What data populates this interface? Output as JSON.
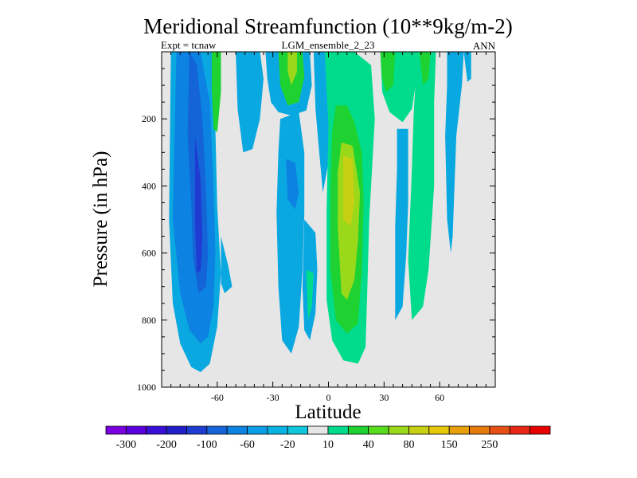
{
  "chart_data": {
    "type": "heatmap",
    "title": "Meridional Streamfunction (10**9kg/m-2)",
    "left_string": "Expt = tcnaw",
    "center_string": "LGM_ensemble_2_23",
    "right_string": "ANN",
    "xlabel": "Latitude",
    "ylabel": "Pressure (in hPa)",
    "xlim": [
      -90,
      90
    ],
    "ylim": [
      1000,
      0
    ],
    "x_tick_labels": [
      "-60",
      "-30",
      "0",
      "30",
      "60"
    ],
    "x_ticks": [
      -60,
      -30,
      0,
      30,
      60
    ],
    "y_tick_labels": [
      "200",
      "400",
      "600",
      "800",
      "1000"
    ],
    "y_ticks": [
      200,
      400,
      600,
      800,
      1000
    ],
    "background_color": "#e6e6e6",
    "colorbar": {
      "labels": [
        "-300",
        "-200",
        "-100",
        "-60",
        "-20",
        "10",
        "40",
        "80",
        "150",
        "250"
      ],
      "colors": [
        "#7a00e0",
        "#5a00dd",
        "#3a10d8",
        "#2020c8",
        "#1e3cd2",
        "#1464d8",
        "#0c82e2",
        "#0a9ee6",
        "#08b4e4",
        "#10c6dc",
        "#e6e6e6",
        "#00dc8c",
        "#1ed232",
        "#58dc1e",
        "#9ad81a",
        "#c8d014",
        "#e6c80a",
        "#e6a00a",
        "#e67a0a",
        "#e65014",
        "#e62814",
        "#e60000"
      ]
    },
    "regions": [
      {
        "name": "sh-cell-outer",
        "color": "#0aa8e0",
        "points": [
          [
            -85,
            0
          ],
          [
            -62,
            0
          ],
          [
            -61,
            230
          ],
          [
            -60,
            460
          ],
          [
            -58,
            660
          ],
          [
            -60,
            820
          ],
          [
            -64,
            930
          ],
          [
            -69,
            955
          ],
          [
            -74,
            940
          ],
          [
            -80,
            870
          ],
          [
            -84,
            750
          ],
          [
            -86,
            500
          ]
        ]
      },
      {
        "name": "sh-cell-mid",
        "color": "#0c82e2",
        "points": [
          [
            -82,
            0
          ],
          [
            -69,
            0
          ],
          [
            -64,
            150
          ],
          [
            -62,
            400
          ],
          [
            -61,
            600
          ],
          [
            -62,
            760
          ],
          [
            -65,
            850
          ],
          [
            -69,
            870
          ],
          [
            -75,
            830
          ],
          [
            -80,
            720
          ],
          [
            -84,
            500
          ]
        ]
      },
      {
        "name": "sh-cell-inner",
        "color": "#1464d8",
        "points": [
          [
            -75,
            0
          ],
          [
            -71,
            40
          ],
          [
            -68,
            200
          ],
          [
            -66,
            420
          ],
          [
            -65,
            600
          ],
          [
            -66,
            700
          ],
          [
            -70,
            720
          ],
          [
            -73,
            620
          ],
          [
            -74,
            450
          ],
          [
            -76,
            250
          ]
        ]
      },
      {
        "name": "sh-cell-core",
        "color": "#1e3cd2",
        "points": [
          [
            -72,
            250
          ],
          [
            -69,
            380
          ],
          [
            -68,
            560
          ],
          [
            -69,
            650
          ],
          [
            -71,
            660
          ],
          [
            -72,
            520
          ]
        ]
      },
      {
        "name": "green-strip-sh",
        "color": "#1ed232",
        "points": [
          [
            -63,
            0
          ],
          [
            -58,
            0
          ],
          [
            -58,
            120
          ],
          [
            -60,
            240
          ],
          [
            -62,
            230
          ],
          [
            -63,
            110
          ]
        ]
      },
      {
        "name": "blue-small-sh",
        "color": "#0aa8e0",
        "points": [
          [
            -58,
            550
          ],
          [
            -54,
            640
          ],
          [
            -52,
            700
          ],
          [
            -56,
            720
          ],
          [
            -58,
            690
          ]
        ]
      },
      {
        "name": "blue-upper-sh",
        "color": "#0aa8e0",
        "points": [
          [
            -50,
            0
          ],
          [
            -37,
            0
          ],
          [
            -35,
            80
          ],
          [
            -37,
            200
          ],
          [
            -41,
            290
          ],
          [
            -46,
            300
          ],
          [
            -49,
            170
          ]
        ]
      },
      {
        "name": "blue-top-mid",
        "color": "#0aa8e0",
        "points": [
          [
            -34,
            0
          ],
          [
            -10,
            0
          ],
          [
            -9,
            100
          ],
          [
            -12,
            175
          ],
          [
            -20,
            190
          ],
          [
            -27,
            180
          ],
          [
            -31,
            150
          ],
          [
            -33,
            80
          ]
        ]
      },
      {
        "name": "green-top",
        "color": "#1ed232",
        "points": [
          [
            -27,
            0
          ],
          [
            -14,
            0
          ],
          [
            -13,
            75
          ],
          [
            -16,
            150
          ],
          [
            -22,
            160
          ],
          [
            -26,
            100
          ]
        ]
      },
      {
        "name": "lime-top",
        "color": "#9ad81a",
        "points": [
          [
            -22,
            0
          ],
          [
            -17,
            0
          ],
          [
            -17,
            60
          ],
          [
            -20,
            100
          ],
          [
            -22,
            60
          ]
        ]
      },
      {
        "name": "blue-mid-sh",
        "color": "#0aa8e0",
        "points": [
          [
            -26,
            200
          ],
          [
            -16,
            180
          ],
          [
            -13,
            300
          ],
          [
            -13,
            480
          ],
          [
            -14,
            650
          ],
          [
            -16,
            820
          ],
          [
            -20,
            900
          ],
          [
            -25,
            860
          ],
          [
            -27,
            700
          ],
          [
            -28,
            480
          ],
          [
            -27,
            300
          ]
        ]
      },
      {
        "name": "blue-deep-mid",
        "color": "#0c82e2",
        "points": [
          [
            -23,
            320
          ],
          [
            -18,
            330
          ],
          [
            -16,
            420
          ],
          [
            -18,
            470
          ],
          [
            -22,
            440
          ]
        ]
      },
      {
        "name": "blue-eq",
        "color": "#0aa8e0",
        "points": [
          [
            -8,
            0
          ],
          [
            3,
            0
          ],
          [
            2,
            190
          ],
          [
            0,
            330
          ],
          [
            -3,
            420
          ],
          [
            -5,
            300
          ],
          [
            -7,
            170
          ]
        ]
      },
      {
        "name": "blue-eq-deep",
        "color": "#0c82e2",
        "points": [
          [
            -2,
            0
          ],
          [
            6,
            0
          ],
          [
            5,
            60
          ],
          [
            0,
            70
          ],
          [
            -1,
            40
          ]
        ]
      },
      {
        "name": "blue-eq-core",
        "color": "#1464d8",
        "points": [
          [
            0,
            0
          ],
          [
            4,
            0
          ],
          [
            3,
            30
          ],
          [
            1,
            30
          ]
        ]
      },
      {
        "name": "blue-small-eq",
        "color": "#0aa8e0",
        "points": [
          [
            -13,
            500
          ],
          [
            -7,
            540
          ],
          [
            -6,
            650
          ],
          [
            -7,
            780
          ],
          [
            -10,
            860
          ],
          [
            -13,
            830
          ],
          [
            -14,
            700
          ]
        ]
      },
      {
        "name": "green-small-eq",
        "color": "#00dc8c",
        "points": [
          [
            -12,
            650
          ],
          [
            -8,
            660
          ],
          [
            -9,
            760
          ],
          [
            -11,
            800
          ]
        ]
      },
      {
        "name": "nh-cell-outer",
        "color": "#00dc8c",
        "points": [
          [
            -2,
            0
          ],
          [
            8,
            0
          ],
          [
            14,
            0
          ],
          [
            23,
            40
          ],
          [
            25,
            200
          ],
          [
            22,
            500
          ],
          [
            21,
            700
          ],
          [
            20,
            880
          ],
          [
            16,
            930
          ],
          [
            8,
            920
          ],
          [
            2,
            860
          ],
          [
            -1,
            740
          ],
          [
            -1,
            470
          ],
          [
            0,
            220
          ]
        ]
      },
      {
        "name": "nh-cell-mid",
        "color": "#1ed232",
        "points": [
          [
            4,
            160
          ],
          [
            10,
            160
          ],
          [
            14,
            210
          ],
          [
            18,
            300
          ],
          [
            19,
            450
          ],
          [
            18,
            650
          ],
          [
            16,
            810
          ],
          [
            10,
            840
          ],
          [
            4,
            800
          ],
          [
            1,
            650
          ],
          [
            1,
            400
          ],
          [
            2,
            240
          ]
        ]
      },
      {
        "name": "nh-cell-inner",
        "color": "#9ad81a",
        "points": [
          [
            7,
            270
          ],
          [
            13,
            280
          ],
          [
            17,
            420
          ],
          [
            16,
            560
          ],
          [
            14,
            680
          ],
          [
            10,
            740
          ],
          [
            7,
            720
          ],
          [
            5,
            520
          ],
          [
            5,
            360
          ]
        ]
      },
      {
        "name": "nh-cell-core",
        "color": "#c8d014",
        "points": [
          [
            8,
            310
          ],
          [
            13,
            320
          ],
          [
            14,
            450
          ],
          [
            12,
            520
          ],
          [
            8,
            500
          ]
        ]
      },
      {
        "name": "green-top-nh",
        "color": "#00dc8c",
        "points": [
          [
            28,
            0
          ],
          [
            48,
            0
          ],
          [
            47,
            100
          ],
          [
            45,
            170
          ],
          [
            40,
            210
          ],
          [
            33,
            180
          ],
          [
            29,
            120
          ]
        ]
      },
      {
        "name": "green-top-nh-inner",
        "color": "#1ed232",
        "points": [
          [
            28,
            0
          ],
          [
            36,
            0
          ],
          [
            35,
            100
          ],
          [
            31,
            120
          ],
          [
            29,
            80
          ]
        ]
      },
      {
        "name": "blue-nh-mid",
        "color": "#0aa8e0",
        "points": [
          [
            37,
            230
          ],
          [
            43,
            230
          ],
          [
            43,
            450
          ],
          [
            42,
            600
          ],
          [
            40,
            760
          ],
          [
            36,
            800
          ],
          [
            36,
            520
          ],
          [
            37,
            350
          ]
        ]
      },
      {
        "name": "green-nh-right",
        "color": "#00dc8c",
        "points": [
          [
            48,
            0
          ],
          [
            58,
            0
          ],
          [
            57,
            150
          ],
          [
            57,
            400
          ],
          [
            54,
            650
          ],
          [
            51,
            760
          ],
          [
            45,
            800
          ],
          [
            43,
            620
          ],
          [
            45,
            350
          ],
          [
            46,
            180
          ]
        ]
      },
      {
        "name": "green-nh-right-inner",
        "color": "#1ed232",
        "points": [
          [
            49,
            0
          ],
          [
            55,
            0
          ],
          [
            54,
            80
          ],
          [
            51,
            100
          ]
        ]
      },
      {
        "name": "blue-far-nh",
        "color": "#0aa8e0",
        "points": [
          [
            64,
            0
          ],
          [
            73,
            0
          ],
          [
            72,
            100
          ],
          [
            69,
            250
          ],
          [
            67,
            550
          ],
          [
            66,
            600
          ],
          [
            64,
            500
          ],
          [
            63,
            250
          ],
          [
            64,
            100
          ]
        ]
      },
      {
        "name": "blue-far-nh-top",
        "color": "#0aa8e0",
        "points": [
          [
            73,
            0
          ],
          [
            77,
            0
          ],
          [
            77,
            80
          ],
          [
            75,
            90
          ]
        ]
      }
    ]
  }
}
